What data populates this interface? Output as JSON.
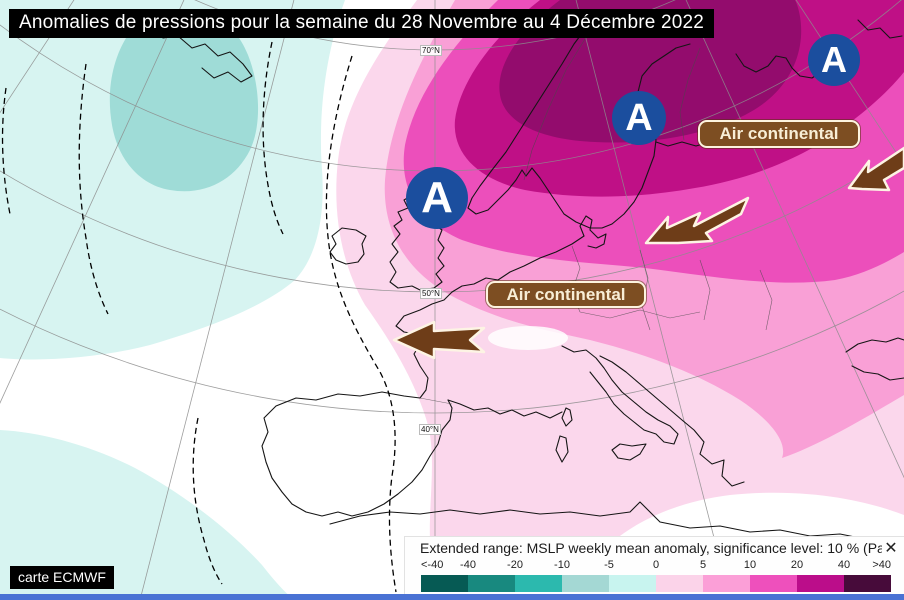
{
  "title": "Anomalies de pressions pour la semaine du 28 Novembre au 4 Décembre 2022",
  "map": {
    "credit": "carte ECMWF",
    "latitude_labels": [
      "70°N",
      "50°N",
      "40°N"
    ],
    "markers": [
      {
        "label": "A",
        "meaning": "anticyclone"
      },
      {
        "label": "A",
        "meaning": "anticyclone"
      },
      {
        "label": "A",
        "meaning": "anticyclone"
      }
    ],
    "marker_color": "#1b4e9e",
    "annotations": [
      {
        "label": "Air continental"
      },
      {
        "label": "Air continental"
      }
    ],
    "annotation_color": "#7d4e22",
    "arrow_color": "#6e3d18"
  },
  "legend": {
    "title": "Extended range: MSLP weekly mean anomaly, significance level: 10 % (Pa",
    "close_icon": "✕",
    "ticks": [
      "<-40",
      "-40",
      "-20",
      "-10",
      "-5",
      "0",
      "5",
      "10",
      "20",
      "40",
      ">40"
    ],
    "colors": [
      "#065a54",
      "#18897f",
      "#2cb9ae",
      "#a4d8d4",
      "#c8f4ef",
      "#fbd3e9",
      "#fb9fd7",
      "#ee50bc",
      "#bb0d8a",
      "#470b3a"
    ]
  },
  "palette": {
    "cyan_pale": "#d7f4f1",
    "teal_mid": "#9fdcd7",
    "pink_pale": "#fbd7ec",
    "pink": "#f9a0d6",
    "magenta_mid": "#ec4fbb",
    "magenta_dark": "#bf1086",
    "magenta_darkest": "#930c6d",
    "bottom_bar_blue": "#4a72d4"
  }
}
